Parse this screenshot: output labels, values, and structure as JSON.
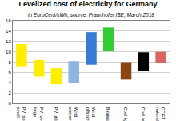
{
  "chart_data": {
    "type": "floating_bar",
    "title": "Levelized cost of electricity for Germany",
    "subtitle": "in EuroCent/kWh, source: Fraunhofer ISE; March 2018",
    "categories": [
      "PV roof\nsmall",
      "PV roof\nlarge",
      "PV utility",
      "Wind\nonshore",
      "Wind\noffshore",
      "Biogas",
      "Coal lignite",
      "Coal hard",
      "CCGT\nnatural gas"
    ],
    "low": [
      7.2,
      5.2,
      3.7,
      4.0,
      7.5,
      10.1,
      4.6,
      6.3,
      7.8
    ],
    "high": [
      11.5,
      8.4,
      6.8,
      8.2,
      13.8,
      14.7,
      8.0,
      9.9,
      10.0
    ],
    "colors": [
      "#ffee00",
      "#ffee00",
      "#ffee00",
      "#8db4e2",
      "#3a7bd5",
      "#33cc33",
      "#8b4513",
      "#000000",
      "#d9665f"
    ],
    "ylim": [
      0,
      16
    ],
    "yticks": [
      0,
      2,
      4,
      6,
      8,
      10,
      12,
      14,
      16
    ],
    "grid": true
  }
}
